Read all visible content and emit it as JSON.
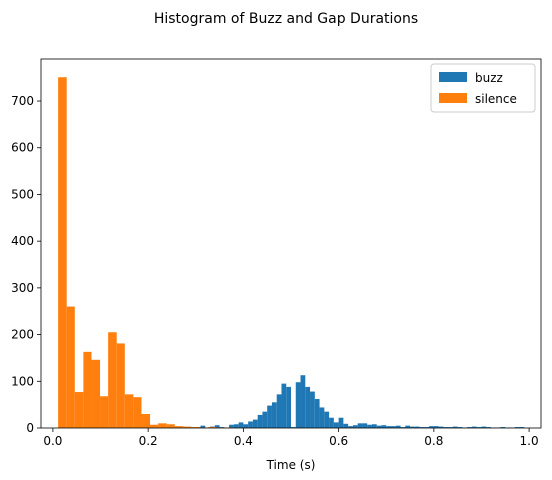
{
  "chart_data": {
    "type": "bar",
    "title": "Histogram of Buzz and Gap Durations",
    "xlabel": "Time (s)",
    "ylabel": "",
    "xlim": [
      -0.025,
      1.025
    ],
    "ylim": [
      0,
      790
    ],
    "xticks": [
      0.0,
      0.2,
      0.4,
      0.6,
      0.8,
      1.0
    ],
    "xtick_labels": [
      "0.0",
      "0.2",
      "0.4",
      "0.6",
      "0.8",
      "1.0"
    ],
    "yticks": [
      0,
      100,
      200,
      300,
      400,
      500,
      600,
      700
    ],
    "ytick_labels": [
      "0",
      "100",
      "200",
      "300",
      "400",
      "500",
      "600",
      "700"
    ],
    "legend_position": "top-right",
    "series": [
      {
        "name": "buzz",
        "color": "#1f77b4",
        "bins": [
          [
            0.3,
            0.31,
            2
          ],
          [
            0.31,
            0.32,
            5
          ],
          [
            0.32,
            0.33,
            1
          ],
          [
            0.33,
            0.34,
            3
          ],
          [
            0.34,
            0.35,
            6
          ],
          [
            0.35,
            0.36,
            2
          ],
          [
            0.36,
            0.37,
            1
          ],
          [
            0.37,
            0.38,
            7
          ],
          [
            0.38,
            0.39,
            8
          ],
          [
            0.39,
            0.4,
            12
          ],
          [
            0.4,
            0.41,
            8
          ],
          [
            0.41,
            0.42,
            14
          ],
          [
            0.42,
            0.43,
            18
          ],
          [
            0.43,
            0.44,
            28
          ],
          [
            0.44,
            0.45,
            35
          ],
          [
            0.45,
            0.46,
            48
          ],
          [
            0.46,
            0.47,
            55
          ],
          [
            0.47,
            0.48,
            72
          ],
          [
            0.48,
            0.49,
            95
          ],
          [
            0.49,
            0.5,
            88
          ],
          [
            0.5,
            0.51,
            2
          ],
          [
            0.51,
            0.52,
            98
          ],
          [
            0.52,
            0.53,
            113
          ],
          [
            0.53,
            0.54,
            88
          ],
          [
            0.54,
            0.55,
            78
          ],
          [
            0.55,
            0.56,
            62
          ],
          [
            0.56,
            0.57,
            44
          ],
          [
            0.57,
            0.58,
            35
          ],
          [
            0.58,
            0.59,
            22
          ],
          [
            0.59,
            0.6,
            12
          ],
          [
            0.6,
            0.61,
            22
          ],
          [
            0.61,
            0.62,
            9
          ],
          [
            0.62,
            0.63,
            4
          ],
          [
            0.63,
            0.64,
            6
          ],
          [
            0.64,
            0.65,
            10
          ],
          [
            0.65,
            0.66,
            10
          ],
          [
            0.66,
            0.67,
            7
          ],
          [
            0.67,
            0.68,
            8
          ],
          [
            0.68,
            0.69,
            5
          ],
          [
            0.69,
            0.7,
            6
          ],
          [
            0.7,
            0.71,
            4
          ],
          [
            0.71,
            0.72,
            4
          ],
          [
            0.72,
            0.73,
            5
          ],
          [
            0.73,
            0.74,
            2
          ],
          [
            0.74,
            0.75,
            5
          ],
          [
            0.75,
            0.76,
            3
          ],
          [
            0.76,
            0.77,
            3
          ],
          [
            0.77,
            0.78,
            2
          ],
          [
            0.78,
            0.79,
            2
          ],
          [
            0.79,
            0.8,
            4
          ],
          [
            0.8,
            0.81,
            4
          ],
          [
            0.81,
            0.82,
            3
          ],
          [
            0.82,
            0.83,
            2
          ],
          [
            0.83,
            0.84,
            2
          ],
          [
            0.84,
            0.85,
            3
          ],
          [
            0.85,
            0.86,
            2
          ],
          [
            0.86,
            0.87,
            1
          ],
          [
            0.87,
            0.88,
            2
          ],
          [
            0.88,
            0.89,
            3
          ],
          [
            0.89,
            0.9,
            2
          ],
          [
            0.9,
            0.91,
            3
          ],
          [
            0.91,
            0.92,
            2
          ],
          [
            0.92,
            0.93,
            1
          ],
          [
            0.93,
            0.94,
            1
          ],
          [
            0.94,
            0.95,
            2
          ],
          [
            0.95,
            0.96,
            1
          ],
          [
            0.96,
            0.97,
            1
          ],
          [
            0.97,
            0.98,
            2
          ],
          [
            0.98,
            0.99,
            2
          ]
        ]
      },
      {
        "name": "silence",
        "color": "#ff7f0e",
        "bins": [
          [
            0.011,
            0.029,
            751
          ],
          [
            0.029,
            0.046,
            260
          ],
          [
            0.046,
            0.064,
            77
          ],
          [
            0.064,
            0.081,
            163
          ],
          [
            0.081,
            0.099,
            146
          ],
          [
            0.099,
            0.116,
            68
          ],
          [
            0.116,
            0.134,
            205
          ],
          [
            0.134,
            0.151,
            181
          ],
          [
            0.151,
            0.169,
            72
          ],
          [
            0.169,
            0.186,
            66
          ],
          [
            0.186,
            0.204,
            30
          ],
          [
            0.204,
            0.221,
            7
          ],
          [
            0.221,
            0.239,
            10
          ],
          [
            0.239,
            0.256,
            8
          ],
          [
            0.256,
            0.274,
            4
          ],
          [
            0.274,
            0.291,
            3
          ],
          [
            0.291,
            0.309,
            2
          ],
          [
            0.309,
            0.326,
            1
          ],
          [
            0.326,
            0.344,
            2
          ],
          [
            0.344,
            0.361,
            1
          ],
          [
            0.361,
            0.379,
            1
          ]
        ]
      }
    ]
  }
}
